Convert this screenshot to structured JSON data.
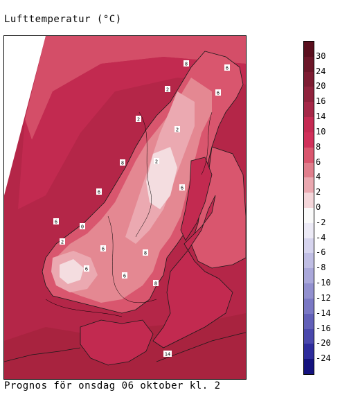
{
  "title": "Lufttemperatur (°C)",
  "caption": "Prognos för onsdag 06 oktober kl. 2",
  "legend": {
    "labels": [
      "30",
      "24",
      "20",
      "16",
      "14",
      "10",
      "8",
      "6",
      "4",
      "2",
      "0",
      "-2",
      "-4",
      "-6",
      "-8",
      "-10",
      "-12",
      "-14",
      "-16",
      "-20",
      "-24"
    ],
    "colors": [
      "#5a0f1e",
      "#6b1628",
      "#7d1c32",
      "#8f223c",
      "#a52848",
      "#c42a52",
      "#d0305a",
      "#d9566e",
      "#e07e8c",
      "#eaa8b0",
      "#f4d6da",
      "#fafafa",
      "#eceaf6",
      "#d6d4ee",
      "#c0bee4",
      "#aaa8da",
      "#9290cf",
      "#7a78c4",
      "#6260b8",
      "#4a48ac",
      "#2e2c9c",
      "#14127e"
    ]
  },
  "map": {
    "isotherm_labels": [
      "8",
      "6",
      "2",
      "6",
      "2",
      "2",
      "8",
      "2",
      "6",
      "6",
      "0",
      "2",
      "6",
      "6",
      "8",
      "6",
      "6",
      "8",
      "14"
    ],
    "colors": {
      "sea": "#c22a50",
      "sea_outer": "#b42648",
      "south": "#a8233f",
      "land_warm": "#d9566e",
      "land_mild": "#e48892",
      "mountain": "#eba9b1",
      "peak": "#f4dde0",
      "coast": "#1a1a1a"
    }
  }
}
